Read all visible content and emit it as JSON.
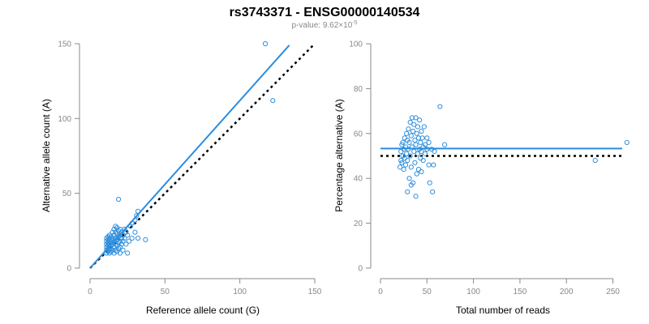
{
  "title": "rs3743371 - ENSG00000140534",
  "subtitle": {
    "prefix": "p-value: 9.62×10",
    "exponent": "-5"
  },
  "colors": {
    "points": "#2f8fdd",
    "fit_line": "#2b8de0",
    "reference_line": "#000000",
    "axis": "#888888"
  },
  "chart_data": [
    {
      "type": "scatter",
      "xlabel": "Reference allele count (G)",
      "ylabel": "Alternative allele count (A)",
      "xlim": [
        0,
        150
      ],
      "ylim": [
        0,
        150
      ],
      "xticks": [
        "0",
        "50",
        "100",
        "150"
      ],
      "yticks": [
        "0",
        "50",
        "100",
        "150"
      ],
      "fit_line": {
        "x": [
          0,
          133
        ],
        "y": [
          0,
          149
        ]
      },
      "reference_line": {
        "x": [
          0,
          150
        ],
        "y": [
          0,
          150
        ],
        "style": "dotted"
      },
      "points": [
        {
          "x": 11,
          "y": 10
        },
        {
          "x": 11,
          "y": 12
        },
        {
          "x": 11,
          "y": 14
        },
        {
          "x": 11,
          "y": 16
        },
        {
          "x": 11,
          "y": 18
        },
        {
          "x": 11,
          "y": 20
        },
        {
          "x": 12,
          "y": 11
        },
        {
          "x": 12,
          "y": 13
        },
        {
          "x": 12,
          "y": 15
        },
        {
          "x": 12,
          "y": 17
        },
        {
          "x": 12,
          "y": 19
        },
        {
          "x": 12,
          "y": 21
        },
        {
          "x": 13,
          "y": 10
        },
        {
          "x": 13,
          "y": 12
        },
        {
          "x": 13,
          "y": 14
        },
        {
          "x": 13,
          "y": 16
        },
        {
          "x": 13,
          "y": 18
        },
        {
          "x": 13,
          "y": 20
        },
        {
          "x": 13,
          "y": 22
        },
        {
          "x": 14,
          "y": 11
        },
        {
          "x": 14,
          "y": 13
        },
        {
          "x": 14,
          "y": 15
        },
        {
          "x": 14,
          "y": 17
        },
        {
          "x": 14,
          "y": 19
        },
        {
          "x": 14,
          "y": 21
        },
        {
          "x": 15,
          "y": 12
        },
        {
          "x": 15,
          "y": 16
        },
        {
          "x": 15,
          "y": 20
        },
        {
          "x": 15,
          "y": 24
        },
        {
          "x": 16,
          "y": 10
        },
        {
          "x": 16,
          "y": 14
        },
        {
          "x": 16,
          "y": 18
        },
        {
          "x": 16,
          "y": 22
        },
        {
          "x": 16,
          "y": 26
        },
        {
          "x": 17,
          "y": 12
        },
        {
          "x": 17,
          "y": 16
        },
        {
          "x": 17,
          "y": 20
        },
        {
          "x": 17,
          "y": 24
        },
        {
          "x": 17,
          "y": 28
        },
        {
          "x": 18,
          "y": 11
        },
        {
          "x": 18,
          "y": 15
        },
        {
          "x": 18,
          "y": 19
        },
        {
          "x": 18,
          "y": 23
        },
        {
          "x": 18,
          "y": 27
        },
        {
          "x": 19,
          "y": 13
        },
        {
          "x": 19,
          "y": 17
        },
        {
          "x": 19,
          "y": 21
        },
        {
          "x": 19,
          "y": 25
        },
        {
          "x": 20,
          "y": 10
        },
        {
          "x": 20,
          "y": 14
        },
        {
          "x": 20,
          "y": 18
        },
        {
          "x": 20,
          "y": 22
        },
        {
          "x": 20,
          "y": 26
        },
        {
          "x": 21,
          "y": 16
        },
        {
          "x": 21,
          "y": 20
        },
        {
          "x": 21,
          "y": 24
        },
        {
          "x": 22,
          "y": 12
        },
        {
          "x": 22,
          "y": 18
        },
        {
          "x": 22,
          "y": 22
        },
        {
          "x": 23,
          "y": 20
        },
        {
          "x": 23,
          "y": 26
        },
        {
          "x": 24,
          "y": 16
        },
        {
          "x": 24,
          "y": 24
        },
        {
          "x": 25,
          "y": 22
        },
        {
          "x": 26,
          "y": 18
        },
        {
          "x": 27,
          "y": 28
        },
        {
          "x": 28,
          "y": 30
        },
        {
          "x": 28,
          "y": 20
        },
        {
          "x": 30,
          "y": 24
        },
        {
          "x": 30,
          "y": 32
        },
        {
          "x": 31,
          "y": 35
        },
        {
          "x": 32,
          "y": 38
        },
        {
          "x": 32,
          "y": 20
        },
        {
          "x": 37,
          "y": 19
        },
        {
          "x": 19,
          "y": 46
        },
        {
          "x": 25,
          "y": 10
        },
        {
          "x": 117,
          "y": 150
        },
        {
          "x": 122,
          "y": 112
        }
      ]
    },
    {
      "type": "scatter",
      "xlabel": "Total number of reads",
      "ylabel": "Percentage alternative (A)",
      "xlim": [
        0,
        260
      ],
      "ylim": [
        0,
        100
      ],
      "xticks": [
        "0",
        "50",
        "100",
        "150",
        "200",
        "250"
      ],
      "yticks": [
        "0",
        "20",
        "40",
        "60",
        "80",
        "100"
      ],
      "fit_line": {
        "y": 53.3
      },
      "reference_line": {
        "y": 50,
        "style": "dotted"
      },
      "points": [
        {
          "x": 21,
          "y": 45
        },
        {
          "x": 22,
          "y": 48
        },
        {
          "x": 22,
          "y": 52
        },
        {
          "x": 23,
          "y": 55
        },
        {
          "x": 23,
          "y": 47
        },
        {
          "x": 24,
          "y": 50
        },
        {
          "x": 24,
          "y": 56
        },
        {
          "x": 25,
          "y": 44
        },
        {
          "x": 25,
          "y": 53
        },
        {
          "x": 26,
          "y": 58
        },
        {
          "x": 26,
          "y": 49
        },
        {
          "x": 27,
          "y": 46
        },
        {
          "x": 27,
          "y": 54
        },
        {
          "x": 28,
          "y": 60
        },
        {
          "x": 28,
          "y": 51
        },
        {
          "x": 29,
          "y": 57
        },
        {
          "x": 29,
          "y": 48
        },
        {
          "x": 30,
          "y": 62
        },
        {
          "x": 30,
          "y": 53
        },
        {
          "x": 31,
          "y": 40
        },
        {
          "x": 31,
          "y": 56
        },
        {
          "x": 32,
          "y": 65
        },
        {
          "x": 32,
          "y": 50
        },
        {
          "x": 33,
          "y": 59
        },
        {
          "x": 33,
          "y": 45
        },
        {
          "x": 34,
          "y": 67
        },
        {
          "x": 34,
          "y": 54
        },
        {
          "x": 35,
          "y": 61
        },
        {
          "x": 35,
          "y": 38
        },
        {
          "x": 36,
          "y": 52
        },
        {
          "x": 36,
          "y": 64
        },
        {
          "x": 37,
          "y": 57
        },
        {
          "x": 37,
          "y": 47
        },
        {
          "x": 38,
          "y": 67
        },
        {
          "x": 38,
          "y": 55
        },
        {
          "x": 39,
          "y": 42
        },
        {
          "x": 39,
          "y": 60
        },
        {
          "x": 40,
          "y": 51
        },
        {
          "x": 40,
          "y": 63
        },
        {
          "x": 41,
          "y": 58
        },
        {
          "x": 41,
          "y": 44
        },
        {
          "x": 42,
          "y": 53
        },
        {
          "x": 42,
          "y": 66
        },
        {
          "x": 43,
          "y": 49
        },
        {
          "x": 43,
          "y": 56
        },
        {
          "x": 44,
          "y": 61
        },
        {
          "x": 44,
          "y": 52
        },
        {
          "x": 45,
          "y": 58
        },
        {
          "x": 46,
          "y": 54
        },
        {
          "x": 46,
          "y": 48
        },
        {
          "x": 47,
          "y": 63
        },
        {
          "x": 48,
          "y": 55
        },
        {
          "x": 48,
          "y": 51
        },
        {
          "x": 50,
          "y": 58
        },
        {
          "x": 50,
          "y": 53
        },
        {
          "x": 52,
          "y": 46
        },
        {
          "x": 52,
          "y": 56
        },
        {
          "x": 55,
          "y": 53
        },
        {
          "x": 57,
          "y": 46
        },
        {
          "x": 58,
          "y": 52
        },
        {
          "x": 29,
          "y": 34
        },
        {
          "x": 38,
          "y": 32
        },
        {
          "x": 56,
          "y": 34
        },
        {
          "x": 64,
          "y": 72
        },
        {
          "x": 69,
          "y": 55
        },
        {
          "x": 33,
          "y": 37
        },
        {
          "x": 44,
          "y": 43
        },
        {
          "x": 53,
          "y": 38
        },
        {
          "x": 231,
          "y": 48
        },
        {
          "x": 265,
          "y": 56
        }
      ]
    }
  ]
}
